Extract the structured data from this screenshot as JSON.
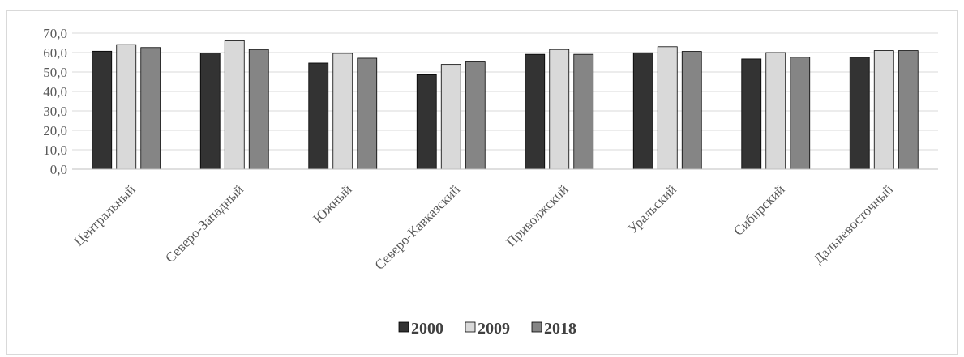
{
  "chart_data": {
    "type": "bar",
    "categories": [
      "Центральный",
      "Северо-Западный",
      "Южный",
      "Северо-Кавказский",
      "Приволжский",
      "Уральский",
      "Сибирский",
      "Дальневосточный"
    ],
    "series": [
      {
        "name": "2000",
        "color": "#333333",
        "values": [
          60.7,
          59.8,
          54.6,
          48.6,
          59.1,
          59.9,
          56.7,
          57.6
        ]
      },
      {
        "name": "2009",
        "color": "#d9d9d9",
        "values": [
          64.1,
          66.1,
          59.6,
          53.9,
          61.6,
          63.0,
          60.0,
          61.0
        ]
      },
      {
        "name": "2018",
        "color": "#858585",
        "values": [
          62.6,
          61.6,
          57.1,
          55.6,
          59.1,
          60.6,
          57.6,
          61.0
        ]
      }
    ],
    "ylim": [
      0,
      70
    ],
    "ytick_step": 10,
    "ytick_labels": [
      "0,0",
      "10,0",
      "20,0",
      "30,0",
      "40,0",
      "50,0",
      "60,0",
      "70,0"
    ],
    "grid": true,
    "legend_position": "bottom",
    "xlabel": "",
    "ylabel": "",
    "title": ""
  }
}
